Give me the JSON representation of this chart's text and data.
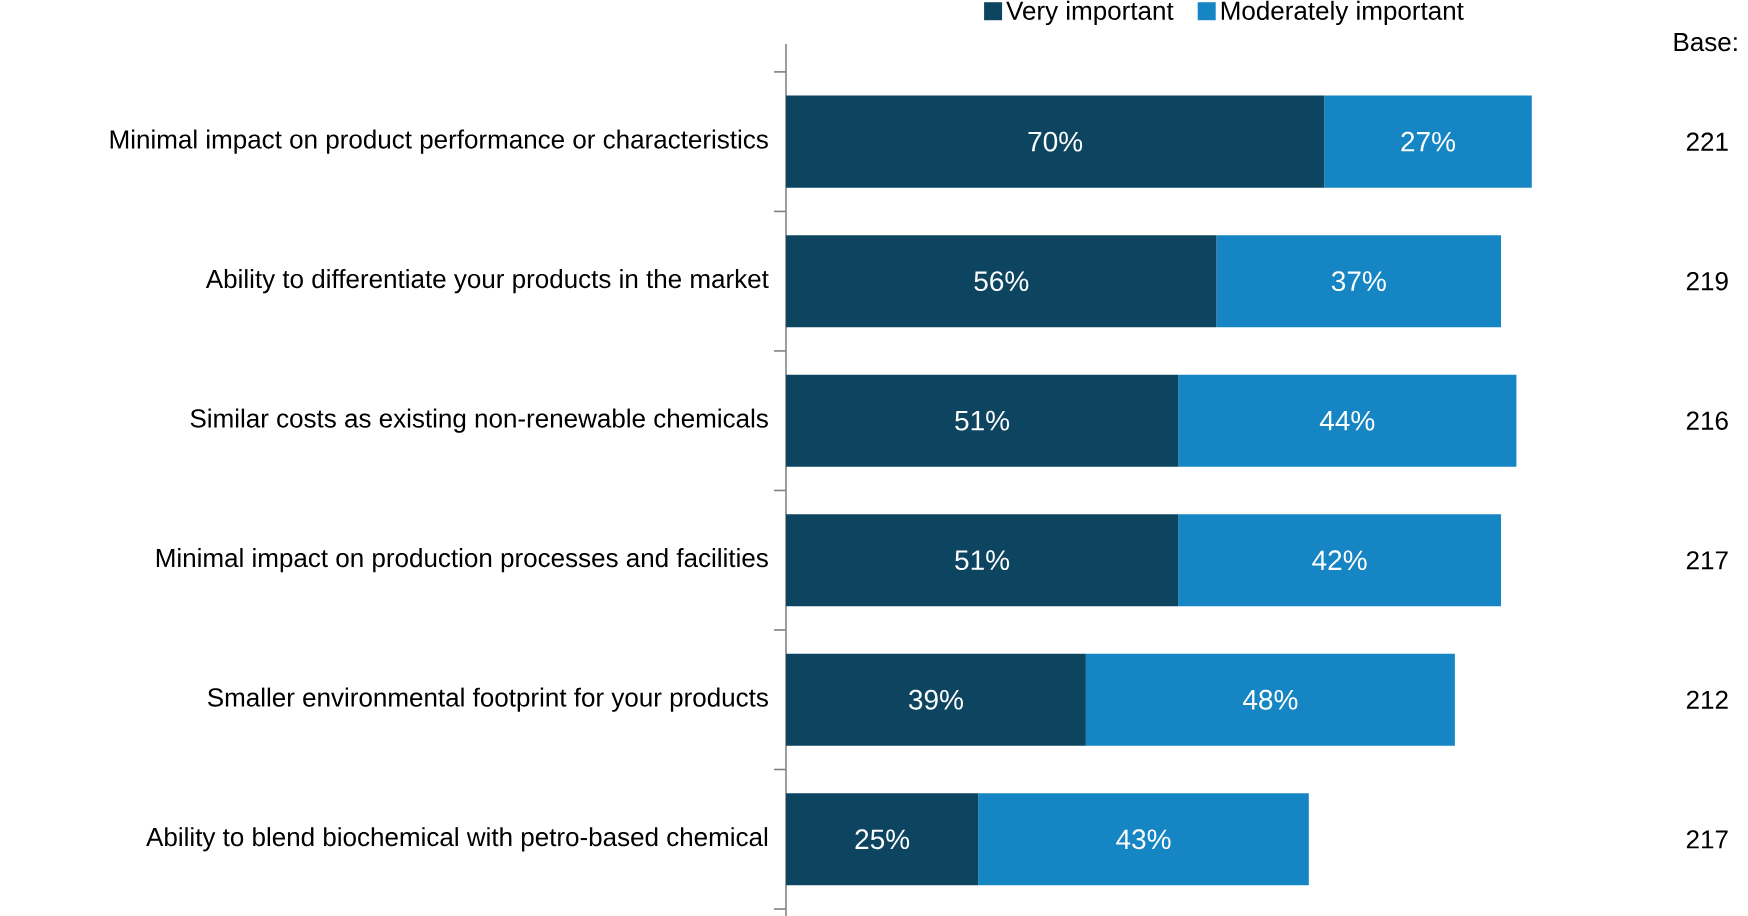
{
  "chart_data": {
    "type": "bar",
    "orientation": "horizontal",
    "stacked": true,
    "legend": "top",
    "categories": [
      "Minimal impact on product performance or characteristics",
      "Ability to differentiate your products in the market",
      "Similar costs as existing non-renewable chemicals",
      "Minimal impact on production processes and facilities",
      "Smaller environmental footprint for your products",
      "Ability to blend biochemical with petro-based chemical"
    ],
    "series": [
      {
        "name": "Very important",
        "color": "#0d4561",
        "values": [
          70,
          56,
          51,
          51,
          39,
          25
        ],
        "value_labels": [
          "70%",
          "56%",
          "51%",
          "51%",
          "39%",
          "25%"
        ]
      },
      {
        "name": "Moderately important",
        "color": "#1586c3",
        "values": [
          27,
          37,
          44,
          42,
          48,
          43
        ],
        "value_labels": [
          "27%",
          "37%",
          "44%",
          "42%",
          "48%",
          "43%"
        ]
      }
    ],
    "annotations": [
      "Base:",
      "221",
      "219",
      "216",
      "217",
      "212",
      "217"
    ]
  }
}
